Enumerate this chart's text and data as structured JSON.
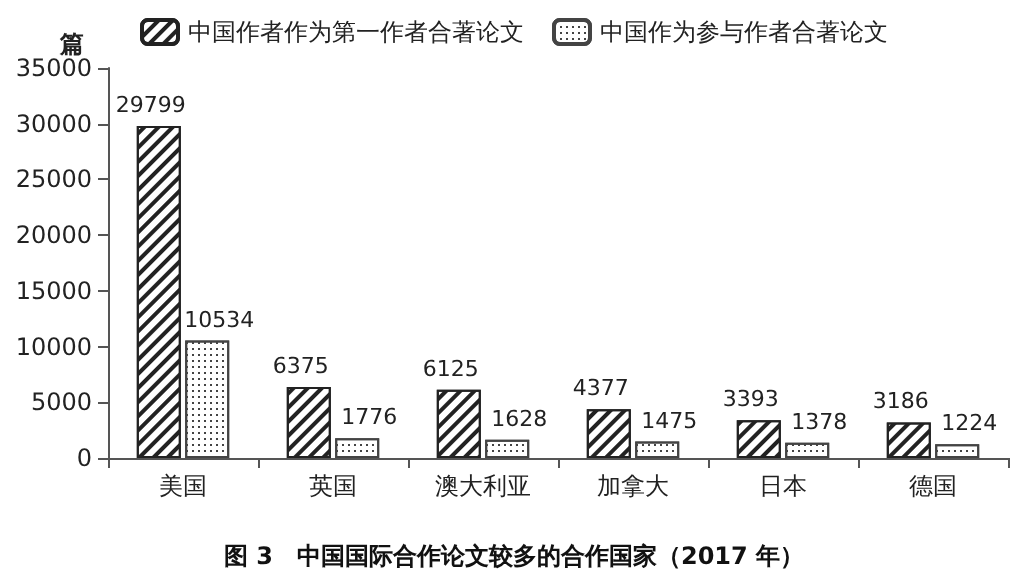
{
  "chart_data": {
    "type": "bar",
    "title": "图 3　中国国际合作论文较多的合作国家（2017 年）",
    "ylabel": "篇",
    "categories": [
      "美国",
      "英国",
      "澳大利亚",
      "加拿大",
      "日本",
      "德国"
    ],
    "series": [
      {
        "name": "中国作者作为第一作者合著论文",
        "color": "#222222",
        "values": [
          29799,
          6375,
          6125,
          4377,
          3393,
          3186
        ]
      },
      {
        "name": "中国作为参与作者合著论文",
        "color": "#444444",
        "values": [
          10534,
          1776,
          1628,
          1475,
          1378,
          1224
        ]
      }
    ],
    "ylim": [
      0,
      35000
    ],
    "yticks": [
      0,
      5000,
      10000,
      15000,
      20000,
      25000,
      30000,
      35000
    ],
    "data_labels": true,
    "legend": "top",
    "grid": false
  }
}
